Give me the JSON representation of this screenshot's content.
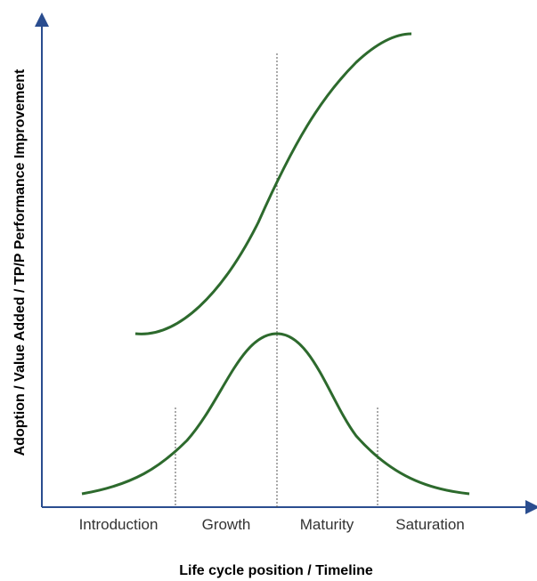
{
  "axes": {
    "y_label": "Adoption / Value Added / TP/P Performance Improvement",
    "x_label": "Life cycle position / Timeline"
  },
  "phases": [
    "Introduction",
    "Growth",
    "Maturity",
    "Saturation"
  ]
}
